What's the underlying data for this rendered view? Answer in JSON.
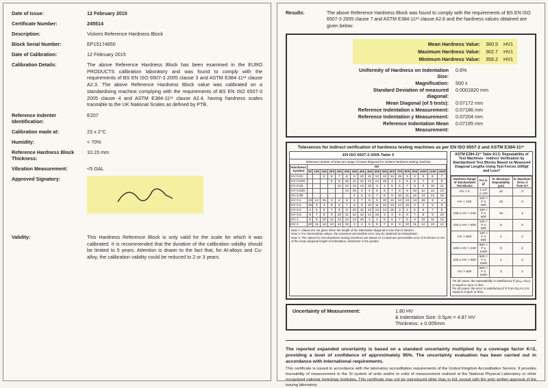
{
  "left": {
    "date_of_issue": {
      "label": "Date of Issue:",
      "value": "12 February 2015"
    },
    "cert_no": {
      "label": "Certificate Number:",
      "value": "245514"
    },
    "description": {
      "label": "Description:",
      "value": "Vickers Reference Hardness Block"
    },
    "serial": {
      "label": "Block Serial Number:",
      "value": "EP15174650"
    },
    "date_cal": {
      "label": "Date of Calibration:",
      "value": "12 February 2015"
    },
    "cal_details": {
      "label": "Calibration Details:",
      "value": "The above Reference Hardness Block has been examined in the EURO PRODUCTS calibration laboratory and was found to comply with the requirements of BS EN ISO 6507-3 2005 clause 3 and ASTM E384-11ᵉ¹ clause A2.3. The above Reference Hardness Block value was calibrated on a standardising machine complying with the requirements of BS EN ISO 6507-3 2005 clause 4 and ASTM E384-11ᵉ¹ clause A2.4, having hardness scales traceable to the UK National Scales as defined by PTB."
    },
    "indenter": {
      "label": "Reference Indenter Identification:",
      "value": "E207"
    },
    "cal_at": {
      "label": "Calibration made at:",
      "value": "23 ± 2°C"
    },
    "humidity": {
      "label": "Humidity:",
      "value": "< 70%"
    },
    "thickness": {
      "label": "Reference Hardness Block Thickness:",
      "value": "10.15 mm"
    },
    "vibration": {
      "label": "Vibration Measurement:",
      "value": "<5 GAL"
    },
    "signatory": {
      "label": "Approved Signatory:"
    },
    "validity": {
      "label": "Validity:",
      "value": "This Hardness Reference Block is only valid for the scale for which it was calibrated. It is recommended that the duration of the calibration validity should be limited to 5 years. Attention is drawn to the fact that, for Al-alloys and Cu-alloy, the calibration validity could be reduced to 2 or 3 years."
    }
  },
  "right": {
    "results_label": "Results:",
    "results_text": "The above Reference Hardness Block was found to comply with the requirements of BS EN ISO 6507-3 2005 clause 7 and ASTM E384-11ᵉ¹ clause A2.6 and the hardness values obtained are given below:",
    "hl": {
      "mean": {
        "k": "Mean Hardness Value:",
        "v": "360.5",
        "u": "HV1"
      },
      "max": {
        "k": "Maximum Hardness Value:",
        "v": "362.7",
        "u": "HV1"
      },
      "min": {
        "k": "Minimum Hardness Value:",
        "v": "358.2",
        "u": "HV1"
      }
    },
    "kv": [
      {
        "k": "Uniformity of Hardness on Indentation Size:",
        "v": "0.6%"
      },
      {
        "k": "Magnification:",
        "v": "500 x"
      },
      {
        "k": "Standard Deviation of measured diagonal:",
        "v": "0.0001820 mm"
      },
      {
        "k": "Mean Diagonal (of 5 tests):",
        "v": "0.07172 mm"
      },
      {
        "k": "Reference Indentation x Measurement:",
        "v": "0.07186 mm"
      },
      {
        "k": "Reference Indentation y Measurement:",
        "v": "0.07204 mm"
      },
      {
        "k": "Reference Indentation Mean Measurement:",
        "v": "0.07195 mm"
      }
    ],
    "tol_title": "Tolerances for indirect verification of hardness testing machines as per EN ISO 6507-2 and ASTM E384-11ᵉ¹",
    "tol_left_head": "EN ISO 6507-2:2005 Table 5",
    "tol_right_head": "ASTM E384-11ᵉ¹ Table A1.5. Repeatability of Test Machines - Indirect Verification by Standardised Test Blocks Based on Measured Diagonal Lengths Using Test Forces 1000gf and Lessᴬ",
    "tol_left_sub": "Minimum number of tests per range of mean diagonal for Vickers hardness testing machine",
    "hardness_col": "Hardness Symbol",
    "left_rows": [
      "HV 0.01",
      "HV 0.015",
      "HV 0.02",
      "HV 0.025",
      "HV 0.05",
      "HV 0.1",
      "HV 0.2",
      "HV 0.3",
      "HV 0.5",
      "HV 1",
      "HV 2"
    ],
    "left_cols": [
      "50",
      "100",
      "150",
      "200",
      "250",
      "300",
      "350",
      "400",
      "450",
      "500",
      "550",
      "600",
      "700",
      "800",
      "900",
      "1000",
      "1250",
      "1500"
    ],
    "left_notes": "Note 1: Values are not given when the length of the indentation diagonal is less than 0.020mm\nNote 2: For intermediate values, the maximum permissible error may be obtained by interpolation\nNote 3: The values for microhardness testing machines are based on a maximum permissible error of 0.001mm or 2% of the mean diagonal length of indentation, whichever is the greater",
    "right_table_head": [
      "Hardness Range of Standardized Test Blocks",
      "For d₁ gf",
      "R₁ Maximum Repeatability (μm)",
      "E, Maximum Error, d from d₀ᴮ"
    ],
    "right_rows": [
      [
        "HV > 0",
        "1 ≤ F ≤ 120",
        "15",
        "3"
      ],
      [
        "HV < 100",
        "120 < F ≤ 500",
        "15",
        "3"
      ],
      [
        "100 ≤ HV < 240",
        "120 < F ≤ 500",
        "15",
        "2"
      ],
      [
        "240 ≤ HV < 600",
        "120 < F ≤ 500",
        "5",
        "2"
      ],
      [
        "HV > 600",
        "120 < F ≤ 500",
        "4",
        "2"
      ],
      [
        "100 ≤ HV < 240",
        "500 < F ≤ 1000",
        "9",
        "2"
      ],
      [
        "240 ≤ HV < 600",
        "500 < F ≤ 1000",
        "4",
        "2"
      ],
      [
        "HV > 600",
        "500 < F ≤ 1000",
        "3",
        "2"
      ]
    ],
    "right_notes": "ᴬIn all cases, the repeatability is satisfactory if (dₘₐₓ−dₘᵢₙ) is equal to 1μm or less.\nᴮIn all cases, the error is satisfactory if E from Eq A1.2 is equal to 0.5μm or less.",
    "uncert": {
      "label": "Uncertainty of Measurement:",
      "l1": "1.80 HV",
      "l2": "& Indentation Size: 0.5μm = 4.87 HV",
      "l3": "Thickness: ± 0.005mm"
    },
    "footer_bold": "The reported expanded uncertainty is based on a standard uncertainty multiplied by a coverage factor K=2, providing a level of confidence of approximately 95%. The uncertainty evaluation has been carried out in accordance with International requirements.",
    "footer_small": "This certificate is issued in accordance with the laboratory accreditation requirements of the United Kingdom Accreditation Service. It provides traceability of measurement to the SI system of units and/or to units of measurement realised at the National Physical Laboratory or other recognised national metrology institutes. This certificate may not be reproduced other than in full, except with the prior written approval of the issuing laboratory."
  }
}
